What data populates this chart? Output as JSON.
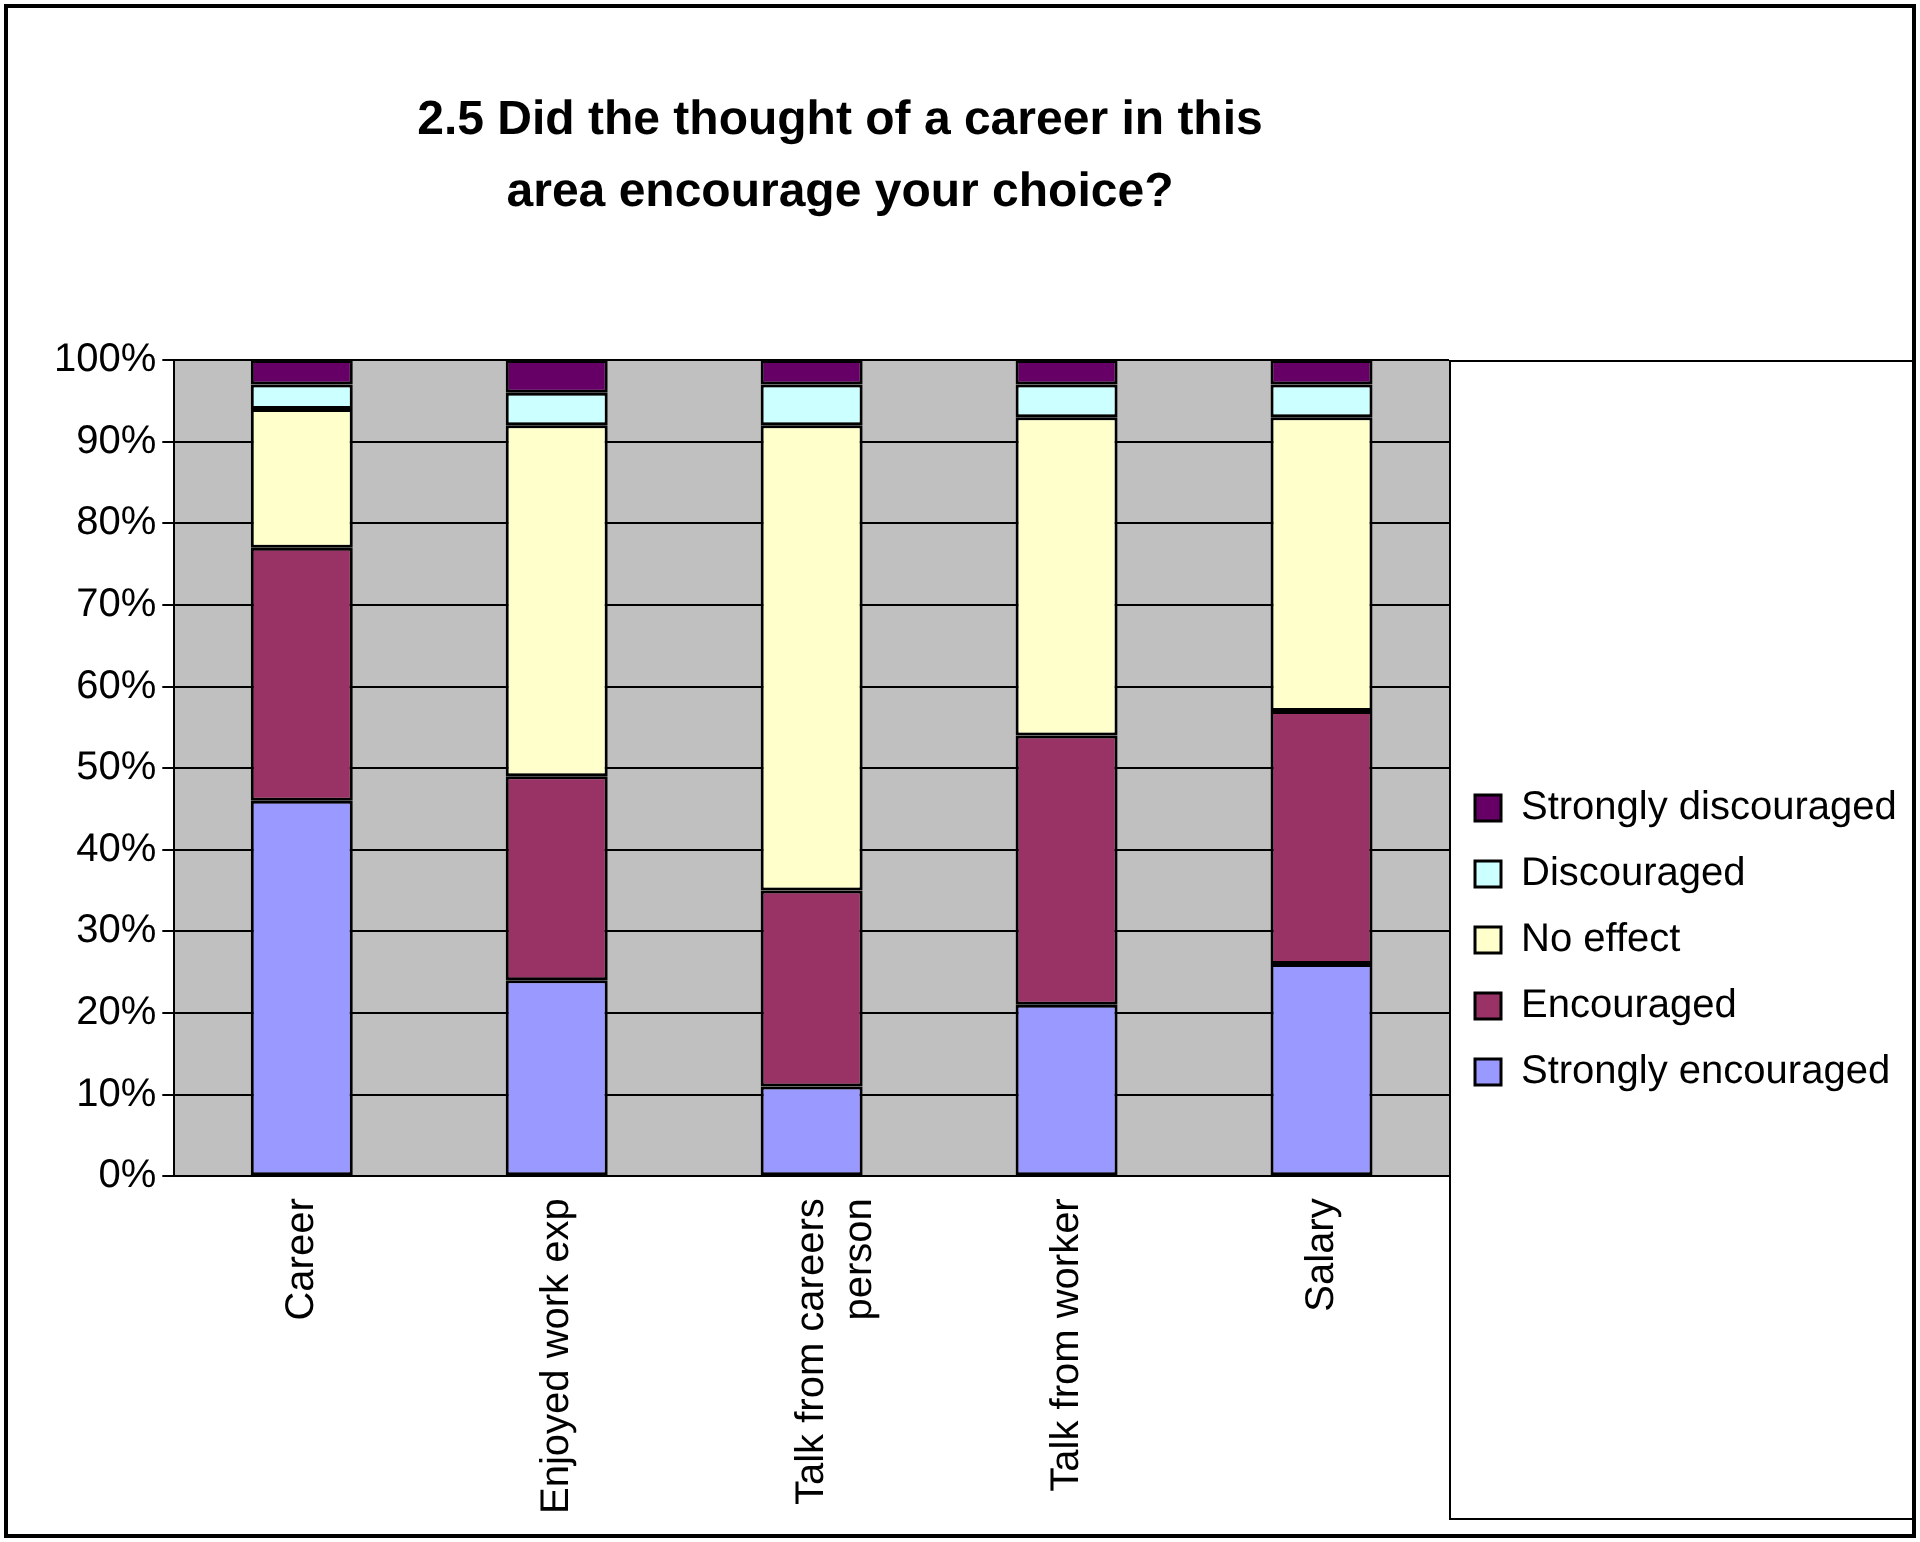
{
  "chart_data": {
    "type": "bar",
    "title": "2.5  Did the thought of a career in this area encourage your choice?",
    "categories": [
      "Career",
      "Enjoyed work exp",
      "Talk from careers person",
      "Talk from worker",
      "Salary"
    ],
    "stacked": true,
    "series": [
      {
        "name": "Strongly encouraged",
        "color": "#9999ff",
        "values": [
          46,
          24,
          11,
          21,
          26
        ]
      },
      {
        "name": "Encouraged",
        "color": "#993366",
        "values": [
          31,
          25,
          24,
          33,
          31
        ]
      },
      {
        "name": "No effect",
        "color": "#ffffcc",
        "values": [
          17,
          43,
          57,
          39,
          36
        ]
      },
      {
        "name": "Discouraged",
        "color": "#ccffff",
        "values": [
          3,
          4,
          5,
          4,
          4
        ]
      },
      {
        "name": "Strongly discouraged",
        "color": "#660066",
        "values": [
          3,
          4,
          3,
          3,
          3
        ]
      }
    ],
    "ylim": [
      0,
      100
    ],
    "yticks": [
      {
        "value": 0,
        "label": "0%"
      },
      {
        "value": 10,
        "label": "10%"
      },
      {
        "value": 20,
        "label": "20%"
      },
      {
        "value": 30,
        "label": "30%"
      },
      {
        "value": 40,
        "label": "40%"
      },
      {
        "value": 50,
        "label": "50%"
      },
      {
        "value": 60,
        "label": "60%"
      },
      {
        "value": 70,
        "label": "70%"
      },
      {
        "value": 80,
        "label": "80%"
      },
      {
        "value": 90,
        "label": "90%"
      },
      {
        "value": 100,
        "label": "100%"
      }
    ],
    "grid": "y",
    "legend": "right"
  }
}
